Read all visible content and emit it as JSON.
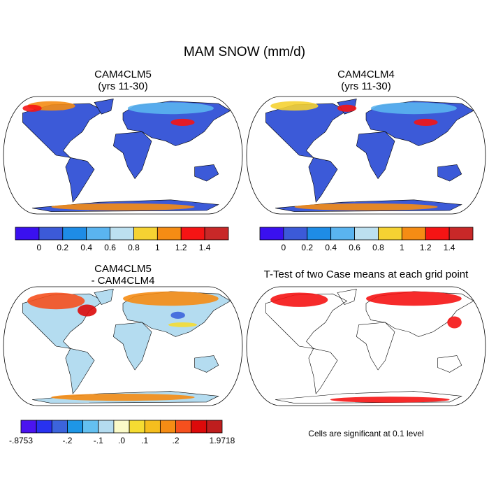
{
  "title": "MAM SNOW (mm/d)",
  "panels": [
    {
      "title": "CAM4CLM5",
      "subtitle": "(yrs 11-30)"
    },
    {
      "title": "CAM4CLM4",
      "subtitle": "(yrs 11-30)"
    },
    {
      "title": "CAM4CLM5",
      "subtitle": "- CAM4CLM4"
    },
    {
      "title": "T-Test of two Case means at each grid point",
      "note": "Cells are significant at 0.1 level"
    }
  ],
  "colorbars": [
    {
      "colors": [
        "#3a10f0",
        "#3c5ad8",
        "#1e8ce6",
        "#5ab4f0",
        "#bce0f0",
        "#f5d232",
        "#f58c14",
        "#f51414",
        "#c82828"
      ],
      "labels": [
        "0",
        "0.2",
        "0.4",
        "0.6",
        "0.8",
        "1",
        "1.2",
        "1.4"
      ]
    },
    {
      "colors": [
        "#3a10f0",
        "#3c5ad8",
        "#1e8ce6",
        "#5ab4f0",
        "#bce0f0",
        "#f5d232",
        "#f58c14",
        "#f51414",
        "#c82828"
      ],
      "labels": [
        "0",
        "0.2",
        "0.4",
        "0.6",
        "0.8",
        "1",
        "1.2",
        "1.4"
      ]
    },
    {
      "colors": [
        "#4b14f0",
        "#2832f0",
        "#3c64dc",
        "#1e96e6",
        "#64c0f0",
        "#b4dcf0",
        "#fafac8",
        "#f5dc32",
        "#f5be1e",
        "#f58c14",
        "#f5501e",
        "#dc0a0a",
        "#be1e1e"
      ],
      "labels": [
        "-.8753",
        "-.2",
        "-.1",
        ".0",
        ".1",
        ".2",
        "1.9718"
      ]
    }
  ]
}
